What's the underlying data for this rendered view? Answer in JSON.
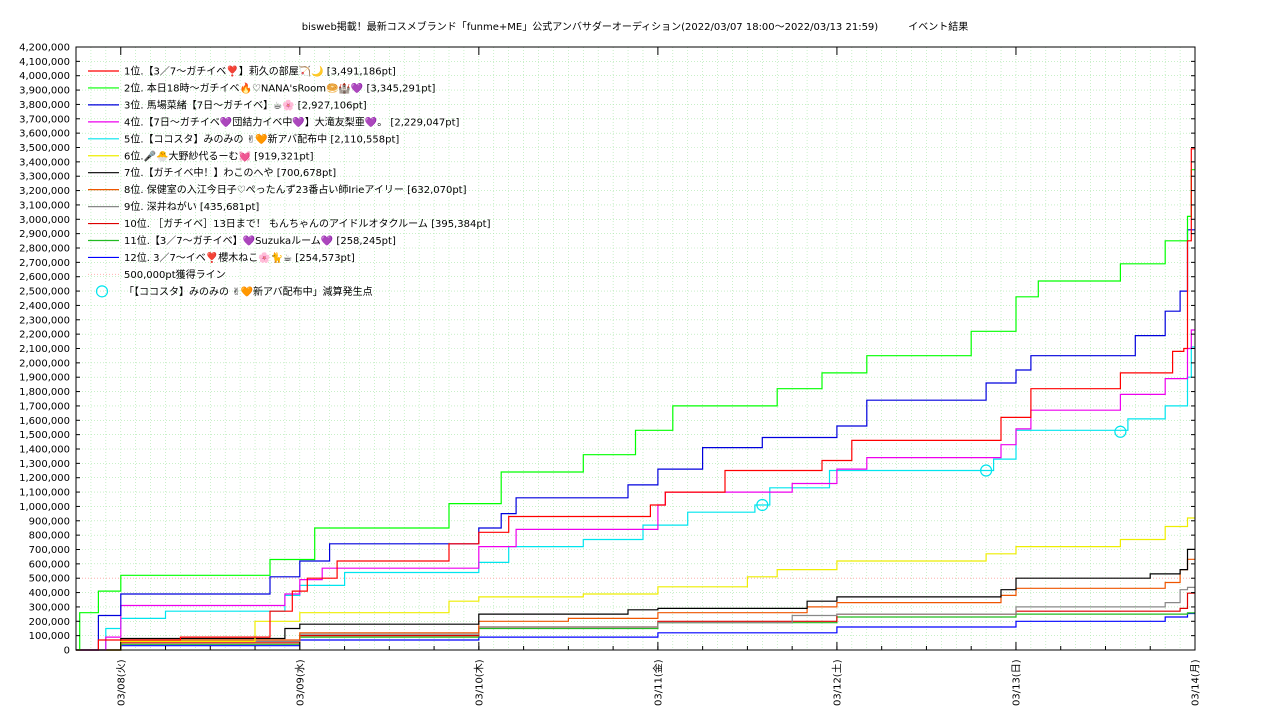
{
  "chart_data": {
    "type": "line",
    "title": "bisweb掲載！最新コスメブランド「funme+ME」公式アンバサダーオーディション(2022/03/07 18:00〜2022/03/13 21:59)　　　イベント結果",
    "xlabel": "",
    "ylabel": "",
    "ylim": [
      0,
      4200000
    ],
    "xlim": [
      "2022-03-07 18:00",
      "2022-03-14 00:00"
    ],
    "grid": true,
    "legend_position": "top-left",
    "x_ticks": [
      "03/08(火)",
      "03/09(水)",
      "03/10(木)",
      "03/11(金)",
      "03/12(土)",
      "03/13(日)",
      "03/14(月)"
    ],
    "y_ticks": [
      "0",
      "100,000",
      "200,000",
      "300,000",
      "400,000",
      "500,000",
      "600,000",
      "700,000",
      "800,000",
      "900,000",
      "1,000,000",
      "1,100,000",
      "1,200,000",
      "1,300,000",
      "1,400,000",
      "1,500,000",
      "1,600,000",
      "1,700,000",
      "1,800,000",
      "1,900,000",
      "2,000,000",
      "2,100,000",
      "2,200,000",
      "2,300,000",
      "2,400,000",
      "2,500,000",
      "2,600,000",
      "2,700,000",
      "2,800,000",
      "2,900,000",
      "3,000,000",
      "3,100,000",
      "3,200,000",
      "3,300,000",
      "3,400,000",
      "3,500,000",
      "3,600,000",
      "3,700,000",
      "3,800,000",
      "3,900,000",
      "4,000,000",
      "4,100,000",
      "4,200,000"
    ],
    "reference_line": {
      "name": "500,000pt獲得ライン",
      "value": 500000,
      "color": "#ffb0b0"
    },
    "penalty_marker": {
      "name": "「【ココスタ】みのみの ✌🧡新アバ配布中」減算発生点",
      "color": "#00e5ee",
      "points": [
        {
          "x": "2022-03-11 14:00",
          "y": 1010000
        },
        {
          "x": "2022-03-12 20:00",
          "y": 1250000
        },
        {
          "x": "2022-03-13 14:00",
          "y": 1520000
        }
      ]
    },
    "series": [
      {
        "name": "1位.【3／7〜ガチイベ❣️】莉久の部屋🏹🌙 [3,491,186pt]",
        "color": "#ff0000",
        "points": [
          [
            "2022-03-07 18:00",
            0
          ],
          [
            "2022-03-07 21:00",
            70000
          ],
          [
            "2022-03-08 08:00",
            90000
          ],
          [
            "2022-03-08 20:00",
            270000
          ],
          [
            "2022-03-08 23:00",
            410000
          ],
          [
            "2022-03-09 01:00",
            500000
          ],
          [
            "2022-03-09 05:00",
            620000
          ],
          [
            "2022-03-09 20:00",
            740000
          ],
          [
            "2022-03-10 00:00",
            820000
          ],
          [
            "2022-03-10 04:00",
            930000
          ],
          [
            "2022-03-10 23:00",
            1010000
          ],
          [
            "2022-03-11 01:00",
            1100000
          ],
          [
            "2022-03-11 09:00",
            1250000
          ],
          [
            "2022-03-11 22:00",
            1320000
          ],
          [
            "2022-03-12 02:00",
            1460000
          ],
          [
            "2022-03-12 22:00",
            1620000
          ],
          [
            "2022-03-13 02:00",
            1820000
          ],
          [
            "2022-03-13 14:00",
            1930000
          ],
          [
            "2022-03-13 21:00",
            2080000
          ],
          [
            "2022-03-13 22:30",
            2100000
          ],
          [
            "2022-03-13 23:00",
            2850000
          ],
          [
            "2022-03-13 23:30",
            3491186
          ],
          [
            "2022-03-14 00:00",
            3491186
          ]
        ]
      },
      {
        "name": "2位. 本日18時〜ガチイベ🔥♡NANA'sRoom🥯🏰💜 [3,345,291pt]",
        "color": "#00ff00",
        "points": [
          [
            "2022-03-07 18:00",
            0
          ],
          [
            "2022-03-07 18:30",
            260000
          ],
          [
            "2022-03-07 21:00",
            410000
          ],
          [
            "2022-03-08 00:00",
            520000
          ],
          [
            "2022-03-08 20:00",
            630000
          ],
          [
            "2022-03-09 02:00",
            850000
          ],
          [
            "2022-03-09 20:00",
            1020000
          ],
          [
            "2022-03-10 03:00",
            1240000
          ],
          [
            "2022-03-10 14:00",
            1360000
          ],
          [
            "2022-03-10 21:00",
            1530000
          ],
          [
            "2022-03-11 02:00",
            1700000
          ],
          [
            "2022-03-11 16:00",
            1820000
          ],
          [
            "2022-03-11 22:00",
            1930000
          ],
          [
            "2022-03-12 04:00",
            2050000
          ],
          [
            "2022-03-12 18:00",
            2220000
          ],
          [
            "2022-03-13 00:00",
            2460000
          ],
          [
            "2022-03-13 03:00",
            2570000
          ],
          [
            "2022-03-13 14:00",
            2690000
          ],
          [
            "2022-03-13 20:00",
            2850000
          ],
          [
            "2022-03-13 23:00",
            3020000
          ],
          [
            "2022-03-13 23:30",
            3345291
          ],
          [
            "2022-03-14 00:00",
            3345291
          ]
        ]
      },
      {
        "name": "3位. 馬場菜緒【7日〜ガチイベ】☕🌸 [2,927,106pt]",
        "color": "#0000dd",
        "points": [
          [
            "2022-03-07 18:00",
            0
          ],
          [
            "2022-03-07 21:00",
            240000
          ],
          [
            "2022-03-08 00:00",
            390000
          ],
          [
            "2022-03-08 20:00",
            510000
          ],
          [
            "2022-03-09 00:00",
            620000
          ],
          [
            "2022-03-09 04:00",
            740000
          ],
          [
            "2022-03-10 00:00",
            850000
          ],
          [
            "2022-03-10 03:00",
            950000
          ],
          [
            "2022-03-10 05:00",
            1060000
          ],
          [
            "2022-03-10 20:00",
            1150000
          ],
          [
            "2022-03-11 00:00",
            1260000
          ],
          [
            "2022-03-11 06:00",
            1410000
          ],
          [
            "2022-03-11 14:00",
            1480000
          ],
          [
            "2022-03-12 00:00",
            1560000
          ],
          [
            "2022-03-12 04:00",
            1740000
          ],
          [
            "2022-03-12 20:00",
            1860000
          ],
          [
            "2022-03-13 00:00",
            1950000
          ],
          [
            "2022-03-13 02:00",
            2050000
          ],
          [
            "2022-03-13 16:00",
            2190000
          ],
          [
            "2022-03-13 20:00",
            2360000
          ],
          [
            "2022-03-13 22:00",
            2500000
          ],
          [
            "2022-03-13 23:00",
            2927106
          ],
          [
            "2022-03-14 00:00",
            2927106
          ]
        ]
      },
      {
        "name": "4位.【7日〜ガチイベ💜団結力イベ中💜】大滝友梨亜💜。 [2,229,047pt]",
        "color": "#ee00ee",
        "points": [
          [
            "2022-03-07 18:00",
            0
          ],
          [
            "2022-03-07 22:00",
            90000
          ],
          [
            "2022-03-08 00:00",
            310000
          ],
          [
            "2022-03-08 22:00",
            390000
          ],
          [
            "2022-03-09 00:00",
            490000
          ],
          [
            "2022-03-09 03:00",
            570000
          ],
          [
            "2022-03-10 00:00",
            720000
          ],
          [
            "2022-03-10 05:00",
            840000
          ],
          [
            "2022-03-11 00:00",
            1010000
          ],
          [
            "2022-03-11 01:00",
            1100000
          ],
          [
            "2022-03-11 18:00",
            1160000
          ],
          [
            "2022-03-12 00:00",
            1260000
          ],
          [
            "2022-03-12 04:00",
            1340000
          ],
          [
            "2022-03-12 22:00",
            1430000
          ],
          [
            "2022-03-13 00:00",
            1540000
          ],
          [
            "2022-03-13 02:00",
            1670000
          ],
          [
            "2022-03-13 14:00",
            1780000
          ],
          [
            "2022-03-13 20:00",
            1890000
          ],
          [
            "2022-03-13 23:00",
            2100000
          ],
          [
            "2022-03-13 23:30",
            2229047
          ],
          [
            "2022-03-14 00:00",
            2229047
          ]
        ]
      },
      {
        "name": "5位.【ココスタ】みのみの ✌🧡新アバ配布中 [2,110,558pt]",
        "color": "#00e5ee",
        "points": [
          [
            "2022-03-07 18:00",
            0
          ],
          [
            "2022-03-07 22:00",
            150000
          ],
          [
            "2022-03-08 00:00",
            220000
          ],
          [
            "2022-03-08 06:00",
            270000
          ],
          [
            "2022-03-08 22:00",
            380000
          ],
          [
            "2022-03-09 00:00",
            450000
          ],
          [
            "2022-03-09 06:00",
            540000
          ],
          [
            "2022-03-10 00:00",
            610000
          ],
          [
            "2022-03-10 04:00",
            720000
          ],
          [
            "2022-03-10 14:00",
            770000
          ],
          [
            "2022-03-10 22:00",
            870000
          ],
          [
            "2022-03-11 04:00",
            960000
          ],
          [
            "2022-03-11 13:00",
            1010000
          ],
          [
            "2022-03-11 15:00",
            1130000
          ],
          [
            "2022-03-11 23:00",
            1250000
          ],
          [
            "2022-03-12 20:00",
            1250000
          ],
          [
            "2022-03-12 21:00",
            1330000
          ],
          [
            "2022-03-13 00:00",
            1530000
          ],
          [
            "2022-03-13 14:00",
            1530000
          ],
          [
            "2022-03-13 15:00",
            1610000
          ],
          [
            "2022-03-13 20:00",
            1700000
          ],
          [
            "2022-03-13 23:00",
            1900000
          ],
          [
            "2022-03-13 23:30",
            2110558
          ],
          [
            "2022-03-14 00:00",
            2110558
          ]
        ]
      },
      {
        "name": "6位.🎤🐣大野紗代るーむ💓 [919,321pt]",
        "color": "#eeee00",
        "points": [
          [
            "2022-03-07 18:00",
            0
          ],
          [
            "2022-03-08 00:00",
            60000
          ],
          [
            "2022-03-08 18:00",
            200000
          ],
          [
            "2022-03-09 00:00",
            260000
          ],
          [
            "2022-03-09 20:00",
            340000
          ],
          [
            "2022-03-10 00:00",
            370000
          ],
          [
            "2022-03-10 14:00",
            390000
          ],
          [
            "2022-03-11 00:00",
            440000
          ],
          [
            "2022-03-11 12:00",
            510000
          ],
          [
            "2022-03-11 16:00",
            560000
          ],
          [
            "2022-03-12 00:00",
            620000
          ],
          [
            "2022-03-12 20:00",
            670000
          ],
          [
            "2022-03-13 00:00",
            720000
          ],
          [
            "2022-03-13 14:00",
            770000
          ],
          [
            "2022-03-13 20:00",
            860000
          ],
          [
            "2022-03-13 23:00",
            919321
          ],
          [
            "2022-03-14 00:00",
            919321
          ]
        ]
      },
      {
        "name": "7位.【ガチイベ中！】わこのへや [700,678pt]",
        "color": "#000000",
        "points": [
          [
            "2022-03-07 18:00",
            0
          ],
          [
            "2022-03-08 00:00",
            80000
          ],
          [
            "2022-03-08 22:00",
            150000
          ],
          [
            "2022-03-09 00:00",
            180000
          ],
          [
            "2022-03-10 00:00",
            250000
          ],
          [
            "2022-03-10 20:00",
            280000
          ],
          [
            "2022-03-11 00:00",
            290000
          ],
          [
            "2022-03-11 20:00",
            340000
          ],
          [
            "2022-03-12 00:00",
            370000
          ],
          [
            "2022-03-12 22:00",
            420000
          ],
          [
            "2022-03-13 00:00",
            500000
          ],
          [
            "2022-03-13 18:00",
            530000
          ],
          [
            "2022-03-13 22:00",
            560000
          ],
          [
            "2022-03-13 23:00",
            700678
          ],
          [
            "2022-03-14 00:00",
            700678
          ]
        ]
      },
      {
        "name": "8位. 保健室の入江今日子♡ぺったんず23番占い師Irieアイリー [632,070pt]",
        "color": "#ee5500",
        "points": [
          [
            "2022-03-07 18:00",
            0
          ],
          [
            "2022-03-08 00:00",
            70000
          ],
          [
            "2022-03-09 00:00",
            120000
          ],
          [
            "2022-03-10 00:00",
            200000
          ],
          [
            "2022-03-10 12:00",
            220000
          ],
          [
            "2022-03-11 00:00",
            260000
          ],
          [
            "2022-03-11 20:00",
            300000
          ],
          [
            "2022-03-12 00:00",
            330000
          ],
          [
            "2022-03-12 22:00",
            380000
          ],
          [
            "2022-03-13 00:00",
            430000
          ],
          [
            "2022-03-13 20:00",
            470000
          ],
          [
            "2022-03-13 22:00",
            560000
          ],
          [
            "2022-03-13 23:00",
            632070
          ],
          [
            "2022-03-14 00:00",
            632070
          ]
        ]
      },
      {
        "name": "9位. 深井ねがい [435,681pt]",
        "color": "#888888",
        "points": [
          [
            "2022-03-07 18:00",
            0
          ],
          [
            "2022-03-08 00:00",
            60000
          ],
          [
            "2022-03-09 00:00",
            110000
          ],
          [
            "2022-03-10 00:00",
            160000
          ],
          [
            "2022-03-11 00:00",
            190000
          ],
          [
            "2022-03-11 18:00",
            240000
          ],
          [
            "2022-03-12 00:00",
            250000
          ],
          [
            "2022-03-13 00:00",
            300000
          ],
          [
            "2022-03-13 20:00",
            330000
          ],
          [
            "2022-03-13 22:00",
            420000
          ],
          [
            "2022-03-13 23:00",
            435681
          ],
          [
            "2022-03-14 00:00",
            435681
          ]
        ]
      },
      {
        "name": "10位. ［ガチイベ］13日まで！ もんちゃんのアイドルオタクルーム [395,384pt]",
        "color": "#dd0000",
        "points": [
          [
            "2022-03-07 18:00",
            0
          ],
          [
            "2022-03-08 00:00",
            50000
          ],
          [
            "2022-03-09 00:00",
            100000
          ],
          [
            "2022-03-10 00:00",
            160000
          ],
          [
            "2022-03-11 00:00",
            200000
          ],
          [
            "2022-03-12 00:00",
            250000
          ],
          [
            "2022-03-13 00:00",
            270000
          ],
          [
            "2022-03-13 22:00",
            290000
          ],
          [
            "2022-03-13 23:00",
            395384
          ],
          [
            "2022-03-14 00:00",
            395384
          ]
        ]
      },
      {
        "name": "11位.【3／7〜ガチイベ】💜Suzukaルーム💜 [258,245pt]",
        "color": "#22bb22",
        "points": [
          [
            "2022-03-07 18:00",
            0
          ],
          [
            "2022-03-08 00:00",
            40000
          ],
          [
            "2022-03-09 00:00",
            90000
          ],
          [
            "2022-03-10 00:00",
            150000
          ],
          [
            "2022-03-11 00:00",
            190000
          ],
          [
            "2022-03-12 00:00",
            230000
          ],
          [
            "2022-03-13 00:00",
            250000
          ],
          [
            "2022-03-13 23:00",
            258245
          ],
          [
            "2022-03-14 00:00",
            258245
          ]
        ]
      },
      {
        "name": "12位. 3／7〜イベ❣️櫻木ねこ🌸🐈☕ [254,573pt]",
        "color": "#0000ff",
        "points": [
          [
            "2022-03-07 18:00",
            0
          ],
          [
            "2022-03-08 00:00",
            30000
          ],
          [
            "2022-03-09 00:00",
            70000
          ],
          [
            "2022-03-10 00:00",
            90000
          ],
          [
            "2022-03-11 00:00",
            120000
          ],
          [
            "2022-03-12 00:00",
            160000
          ],
          [
            "2022-03-13 00:00",
            200000
          ],
          [
            "2022-03-13 20:00",
            230000
          ],
          [
            "2022-03-13 23:00",
            254573
          ],
          [
            "2022-03-14 00:00",
            254573
          ]
        ]
      }
    ]
  }
}
